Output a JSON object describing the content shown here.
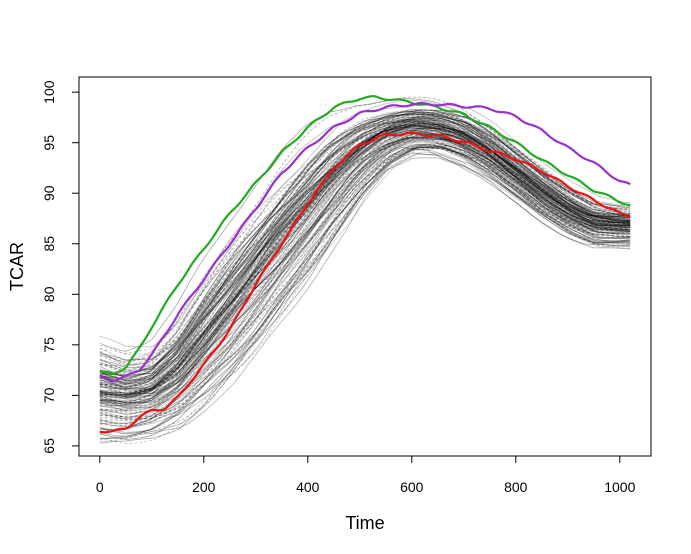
{
  "chart_data": {
    "type": "line",
    "title": "",
    "xlabel": "Time",
    "ylabel": "TCAR",
    "xlim": [
      -40,
      1060
    ],
    "ylim": [
      64,
      101.5
    ],
    "x_ticks": [
      0,
      200,
      400,
      600,
      800,
      1000
    ],
    "y_ticks": [
      65,
      70,
      75,
      80,
      85,
      90,
      95,
      100
    ],
    "grid": false,
    "background_series": {
      "color": "#000000",
      "count": 150,
      "style": "thin dashed curves, semi-transparent, spread around a sigmoidal rise then decline",
      "envelope": {
        "x": [
          0,
          50,
          100,
          150,
          200,
          250,
          300,
          350,
          400,
          450,
          500,
          550,
          600,
          650,
          700,
          750,
          800,
          850,
          900,
          950,
          1000,
          1020
        ],
        "low": [
          65.0,
          65.0,
          65.5,
          66.5,
          68.5,
          71.0,
          74.0,
          77.5,
          81.0,
          85.0,
          89.0,
          92.0,
          93.5,
          93.5,
          92.5,
          91.0,
          89.0,
          87.0,
          85.5,
          84.5,
          84.5,
          84.5
        ],
        "high": [
          76.5,
          75.5,
          76.0,
          79.0,
          83.5,
          87.5,
          91.0,
          94.0,
          96.5,
          98.5,
          99.5,
          99.7,
          99.8,
          99.6,
          99.0,
          97.5,
          95.5,
          93.5,
          91.5,
          90.0,
          89.5,
          89.5
        ]
      }
    },
    "series": [
      {
        "name": "green",
        "color": "#22AA22",
        "x": [
          0,
          25,
          50,
          75,
          100,
          150,
          200,
          250,
          300,
          350,
          400,
          450,
          500,
          530,
          560,
          600,
          650,
          700,
          750,
          800,
          850,
          900,
          950,
          1000,
          1020
        ],
        "y": [
          72.3,
          72.1,
          72.8,
          74.5,
          76.8,
          81.0,
          84.5,
          88.0,
          91.0,
          94.0,
          96.5,
          98.5,
          99.4,
          99.5,
          99.3,
          99.0,
          98.5,
          97.8,
          96.5,
          95.0,
          93.3,
          91.8,
          90.3,
          89.2,
          88.8
        ]
      },
      {
        "name": "purple",
        "color": "#9932CC",
        "x": [
          0,
          25,
          50,
          75,
          100,
          150,
          200,
          250,
          300,
          350,
          400,
          450,
          500,
          550,
          600,
          650,
          700,
          750,
          800,
          850,
          900,
          950,
          1000,
          1020
        ],
        "y": [
          71.8,
          71.5,
          71.8,
          72.5,
          74.0,
          78.0,
          81.5,
          85.0,
          88.5,
          92.0,
          94.5,
          96.5,
          97.9,
          98.5,
          98.8,
          98.8,
          98.6,
          98.4,
          97.6,
          96.2,
          94.5,
          93.0,
          91.2,
          90.8
        ]
      },
      {
        "name": "red",
        "color": "#EE1111",
        "x": [
          0,
          25,
          50,
          75,
          100,
          125,
          150,
          200,
          250,
          300,
          350,
          400,
          450,
          500,
          550,
          600,
          650,
          700,
          750,
          800,
          850,
          900,
          950,
          1000,
          1020
        ],
        "y": [
          66.5,
          66.4,
          66.7,
          67.8,
          68.5,
          68.7,
          69.8,
          73.0,
          76.5,
          81.0,
          85.0,
          89.0,
          92.5,
          94.8,
          95.8,
          95.9,
          95.7,
          95.1,
          94.2,
          93.4,
          92.2,
          90.7,
          89.3,
          88.0,
          87.7
        ]
      }
    ]
  }
}
